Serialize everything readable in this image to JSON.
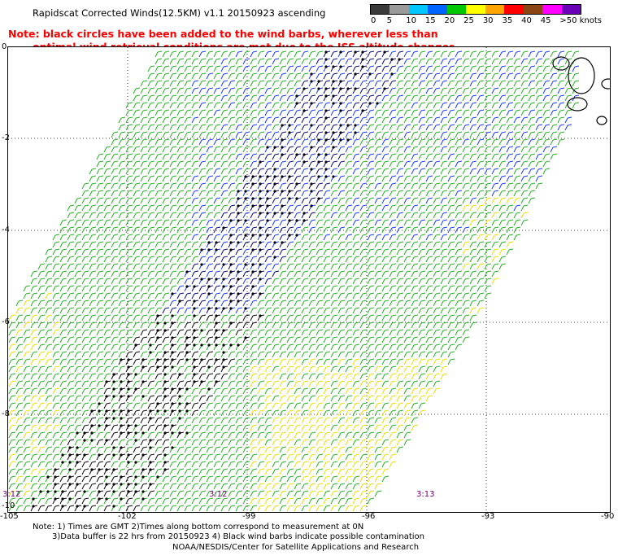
{
  "header": {
    "title": "Rapidscat Corrected Winds(12.5KM) v1.1 20150923 ascending",
    "note_line1": "Note: black circles have been added to the wind barbs, wherever less than",
    "note_line2": "optimal wind retrieval conditions are met due to the ISS altitude changes."
  },
  "legend": {
    "labels": [
      "0",
      "5",
      "10",
      "15",
      "20",
      "25",
      "30",
      "35",
      "40",
      "45",
      ">50 knots"
    ],
    "colors": [
      "#3a3a3a",
      "#9a9a9a",
      "#00c8ff",
      "#0064ff",
      "#00c800",
      "#ffff00",
      "#ffa500",
      "#ff0000",
      "#8b4513",
      "#ff00ff",
      "#6a00b8"
    ]
  },
  "map": {
    "lat_labels": [
      "0",
      "-2",
      "-4",
      "-6",
      "-8",
      "-10"
    ],
    "lon_labels": [
      "-105",
      "-102",
      "-99",
      "-96",
      "-93",
      "-90"
    ],
    "time_labels": [
      "3:12",
      "3:12",
      "3:13"
    ]
  },
  "footer": {
    "line1": "Note: 1) Times are GMT 2)Times along bottom correspond to measurement at 0N",
    "line2": "3)Data buffer is 22 hrs from 20150923 4) Black wind barbs indicate possible contamination",
    "credit": "NOAA/NESDIS/Center for Satellite Applications and Research"
  }
}
